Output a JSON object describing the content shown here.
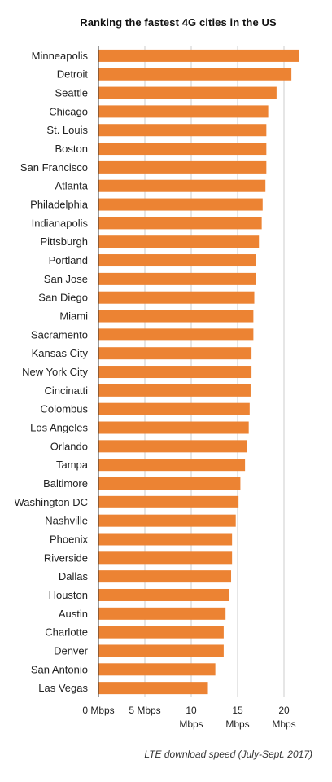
{
  "chart_data": {
    "type": "bar",
    "orientation": "horizontal",
    "title": "Ranking the fastest 4G cities in the US",
    "xlabel": "LTE download speed (July-Sept. 2017)",
    "ylabel": "",
    "xlim": [
      0,
      22
    ],
    "grid": true,
    "bar_color": "#ec8333",
    "categories": [
      "Minneapolis",
      "Detroit",
      "Seattle",
      "Chicago",
      "St. Louis",
      "Boston",
      "San Francisco",
      "Atlanta",
      "Philadelphia",
      "Indianapolis",
      "Pittsburgh",
      "Portland",
      "San Jose",
      "San Diego",
      "Miami",
      "Sacramento",
      "Kansas City",
      "New York City",
      "Cincinatti",
      "Colombus",
      "Los Angeles",
      "Orlando",
      "Tampa",
      "Baltimore",
      "Washington DC",
      "Nashville",
      "Phoenix",
      "Riverside",
      "Dallas",
      "Houston",
      "Austin",
      "Charlotte",
      "Denver",
      "San Antonio",
      "Las Vegas"
    ],
    "values": [
      21.6,
      20.8,
      19.2,
      18.3,
      18.1,
      18.1,
      18.1,
      18.0,
      17.7,
      17.6,
      17.3,
      17.0,
      17.0,
      16.8,
      16.7,
      16.7,
      16.5,
      16.5,
      16.4,
      16.3,
      16.2,
      16.0,
      15.8,
      15.3,
      15.1,
      14.8,
      14.4,
      14.4,
      14.3,
      14.1,
      13.7,
      13.5,
      13.5,
      12.6,
      11.8
    ],
    "ticks": [
      {
        "value": 0,
        "label": "0 Mbps"
      },
      {
        "value": 5,
        "label": "5 Mbps"
      },
      {
        "value": 10,
        "label": "10 Mbps"
      },
      {
        "value": 15,
        "label": "15 Mbps"
      },
      {
        "value": 20,
        "label": "20 Mbps"
      }
    ]
  }
}
